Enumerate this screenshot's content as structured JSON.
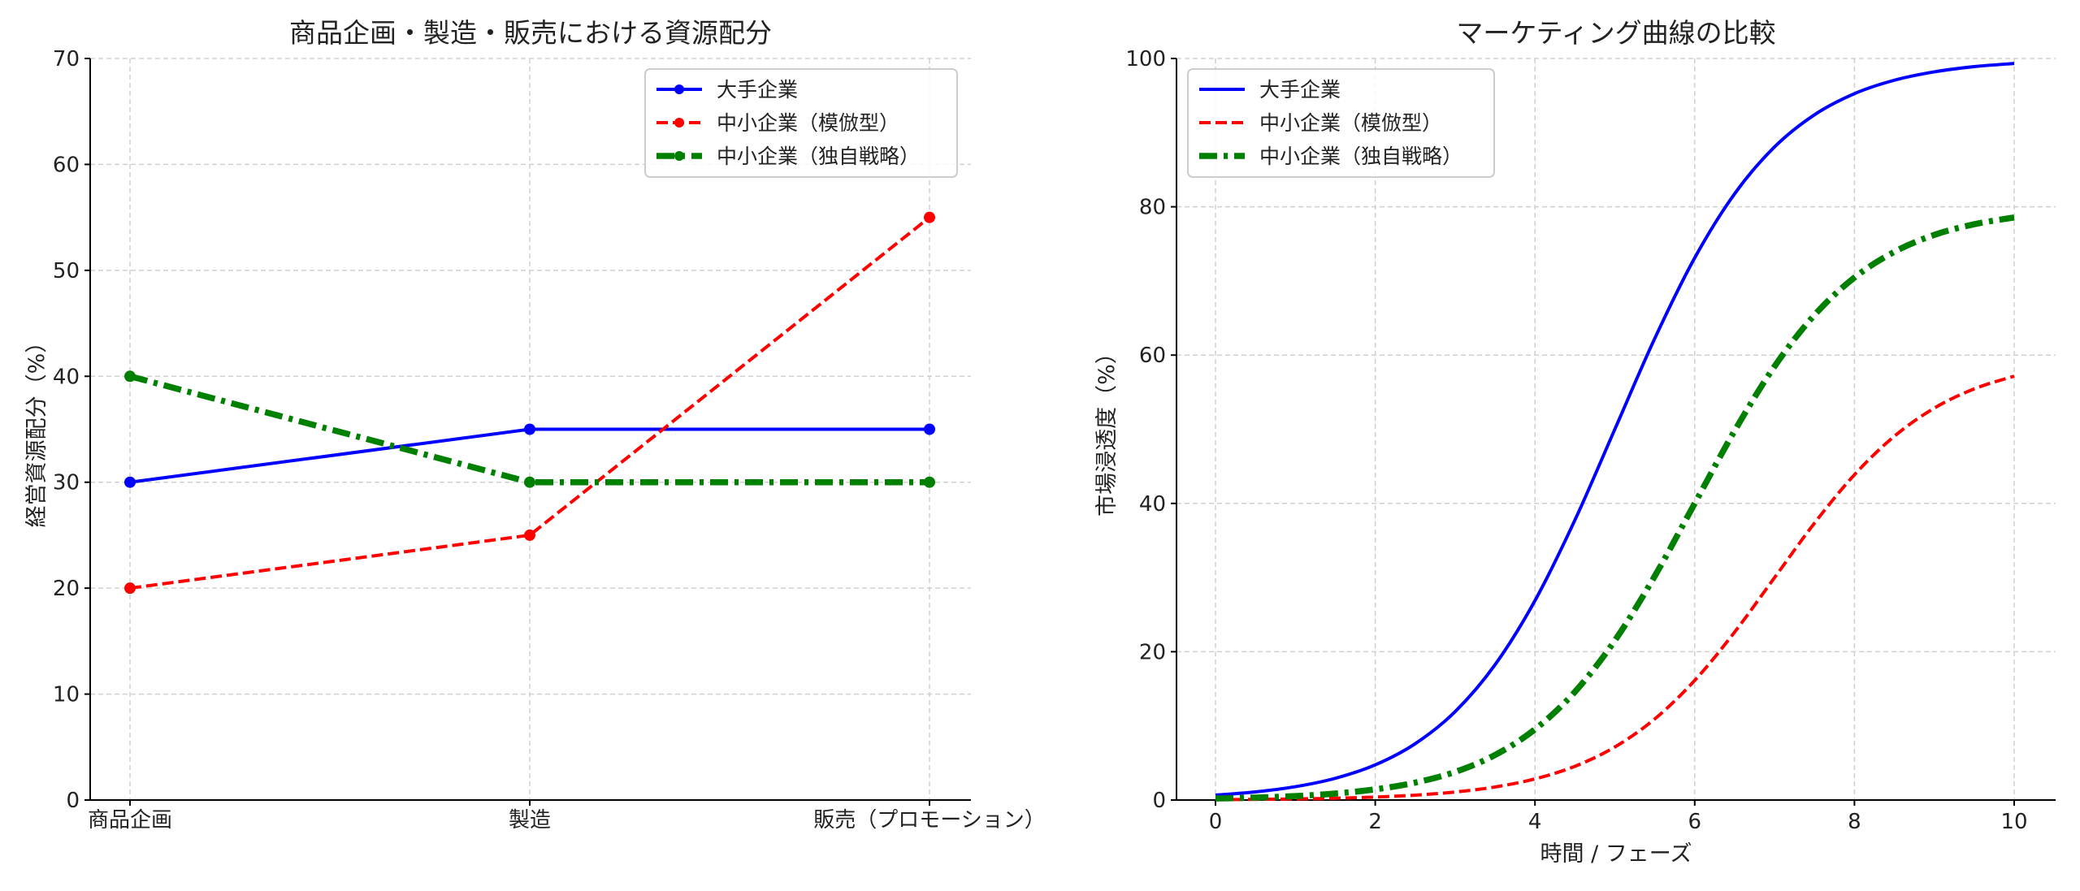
{
  "chart_data": [
    {
      "type": "line",
      "title": "商品企画・製造・販売における資源配分",
      "xlabel": "",
      "ylabel": "経営資源配分（%）",
      "categories": [
        "商品企画",
        "製造",
        "販売（プロモーション）"
      ],
      "ylim": [
        0,
        70
      ],
      "yticks": [
        0,
        10,
        20,
        30,
        40,
        50,
        60,
        70
      ],
      "grid": true,
      "legend_position": "top-right",
      "series": [
        {
          "name": "大手企業",
          "values": [
            30,
            35,
            35
          ],
          "color": "#0000ff",
          "style": "solid",
          "marker": "circle"
        },
        {
          "name": "中小企業（模倣型）",
          "values": [
            20,
            25,
            55
          ],
          "color": "#ff0000",
          "style": "dashed",
          "marker": "circle"
        },
        {
          "name": "中小企業（独自戦略）",
          "values": [
            40,
            30,
            30
          ],
          "color": "#008000",
          "style": "dashdot",
          "marker": "circle"
        }
      ]
    },
    {
      "type": "line",
      "title": "マーケティング曲線の比較",
      "xlabel": "時間 / フェーズ",
      "ylabel": "市場浸透度（%）",
      "xlim": [
        0,
        10
      ],
      "ylim": [
        0,
        100
      ],
      "xticks": [
        0,
        2,
        4,
        6,
        8,
        10
      ],
      "yticks": [
        0,
        20,
        40,
        60,
        80,
        100
      ],
      "grid": true,
      "legend_position": "top-left",
      "x": [
        0,
        0.5,
        1,
        1.5,
        2,
        2.5,
        3,
        3.5,
        4,
        4.5,
        5,
        5.5,
        6,
        6.5,
        7,
        7.5,
        8,
        8.5,
        9,
        9.5,
        10
      ],
      "series": [
        {
          "name": "大手企業",
          "color": "#0000ff",
          "style": "solid",
          "values": [
            0.67,
            1.1,
            1.8,
            2.93,
            4.74,
            7.59,
            11.92,
            18.24,
            26.89,
            37.75,
            50,
            62.25,
            73.11,
            81.76,
            88.08,
            92.41,
            95.26,
            97.07,
            98.2,
            98.9,
            99.33
          ]
        },
        {
          "name": "中小企業（模倣型）",
          "color": "#ff0000",
          "style": "dashed",
          "values": [
            0.05,
            0.09,
            0.15,
            0.24,
            0.4,
            0.66,
            1.08,
            1.76,
            2.85,
            4.55,
            7.15,
            10.94,
            16.13,
            22.65,
            30,
            37.35,
            43.87,
            49.06,
            52.85,
            55.45,
            57.16
          ]
        },
        {
          "name": "中小企業（独自戦略）",
          "color": "#008000",
          "style": "dashdot",
          "values": [
            0.2,
            0.33,
            0.54,
            0.88,
            1.44,
            2.35,
            3.79,
            6.07,
            9.54,
            14.59,
            21.51,
            30.2,
            40,
            49.8,
            58.49,
            65.41,
            70.46,
            73.93,
            76.21,
            77.65,
            78.56
          ]
        }
      ]
    }
  ]
}
